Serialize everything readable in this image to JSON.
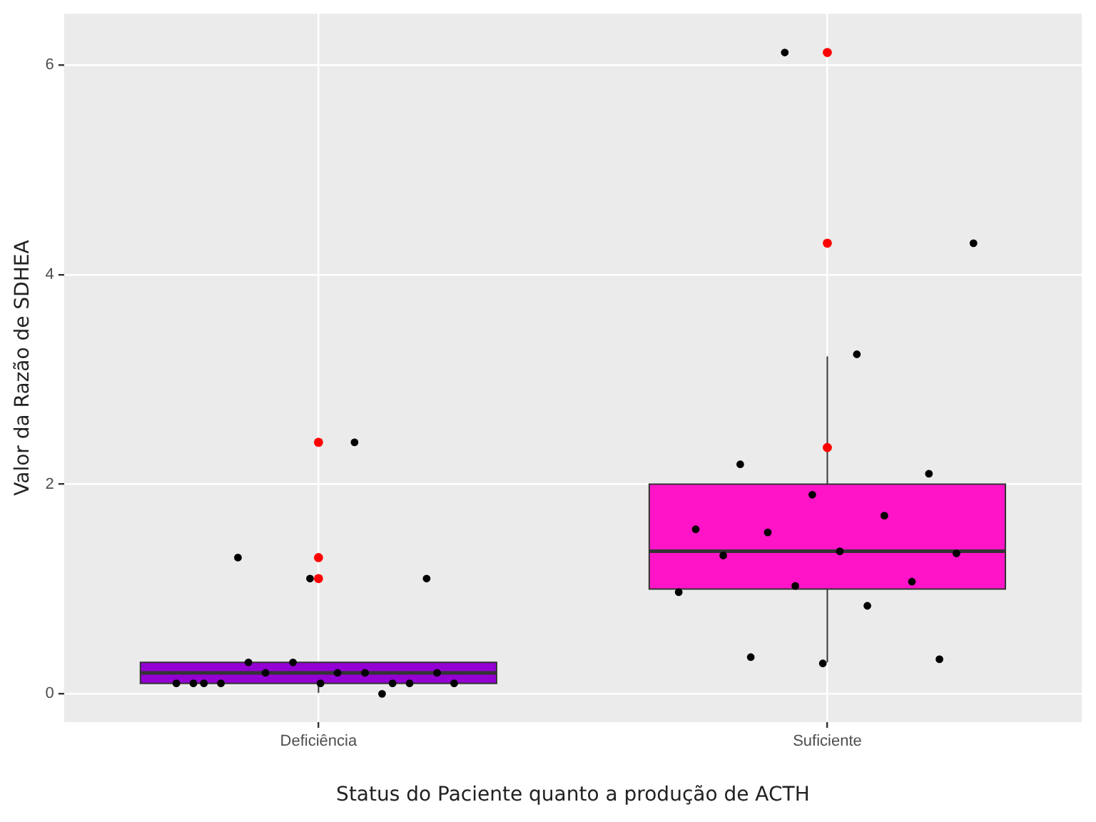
{
  "chart_data": {
    "type": "box",
    "xlabel": "Status do Paciente quanto a produção de ACTH",
    "ylabel": "Valor da Razão de SDHEA",
    "categories": [
      "Deficiência",
      "Suficiente"
    ],
    "colors": [
      "#9400d3",
      "#ff14c8"
    ],
    "boxes": [
      {
        "low": 0.01,
        "q1": 0.1,
        "median": 0.2,
        "q3": 0.3,
        "high": 0.3,
        "outliers": [
          2.4,
          1.3,
          1.1
        ]
      },
      {
        "low": 0.3,
        "q1": 1.0,
        "median": 1.36,
        "q3": 2.0,
        "high": 3.22,
        "outliers": [
          6.12,
          4.3,
          2.35
        ]
      }
    ],
    "series": [
      {
        "type": "scatter",
        "color": "#000000",
        "x": [
          "Deficiência",
          "Deficiência",
          "Deficiência",
          "Deficiência",
          "Deficiência",
          "Deficiência",
          "Deficiência",
          "Deficiência",
          "Deficiência",
          "Deficiência",
          "Deficiência",
          "Deficiência",
          "Deficiência",
          "Deficiência",
          "Deficiência",
          "Deficiência",
          "Deficiência",
          "Deficiência",
          "Deficiência",
          "Suficiente",
          "Suficiente",
          "Suficiente",
          "Suficiente",
          "Suficiente",
          "Suficiente",
          "Suficiente",
          "Suficiente",
          "Suficiente",
          "Suficiente",
          "Suficiente",
          "Suficiente",
          "Suficiente",
          "Suficiente",
          "Suficiente",
          "Suficiente",
          "Suficiente",
          "Suficiente",
          "Suficiente"
        ],
        "values": [
          2.4,
          1.3,
          1.1,
          1.1,
          0.1,
          0.0,
          0.2,
          0.1,
          0.2,
          0.1,
          0.1,
          0.3,
          0.1,
          0.2,
          0.3,
          0.2,
          0.1,
          0.1,
          0.1,
          6.12,
          4.3,
          3.24,
          2.19,
          2.1,
          1.9,
          1.57,
          1.7,
          1.54,
          1.34,
          1.36,
          1.32,
          1.07,
          1.03,
          0.97,
          0.84,
          0.35,
          0.33,
          0.29
        ]
      }
    ],
    "ylim": [
      -0.27,
      6.49
    ],
    "yticks": [
      0,
      2,
      4,
      6
    ],
    "grid": true,
    "legend": false,
    "marker": "circle"
  }
}
